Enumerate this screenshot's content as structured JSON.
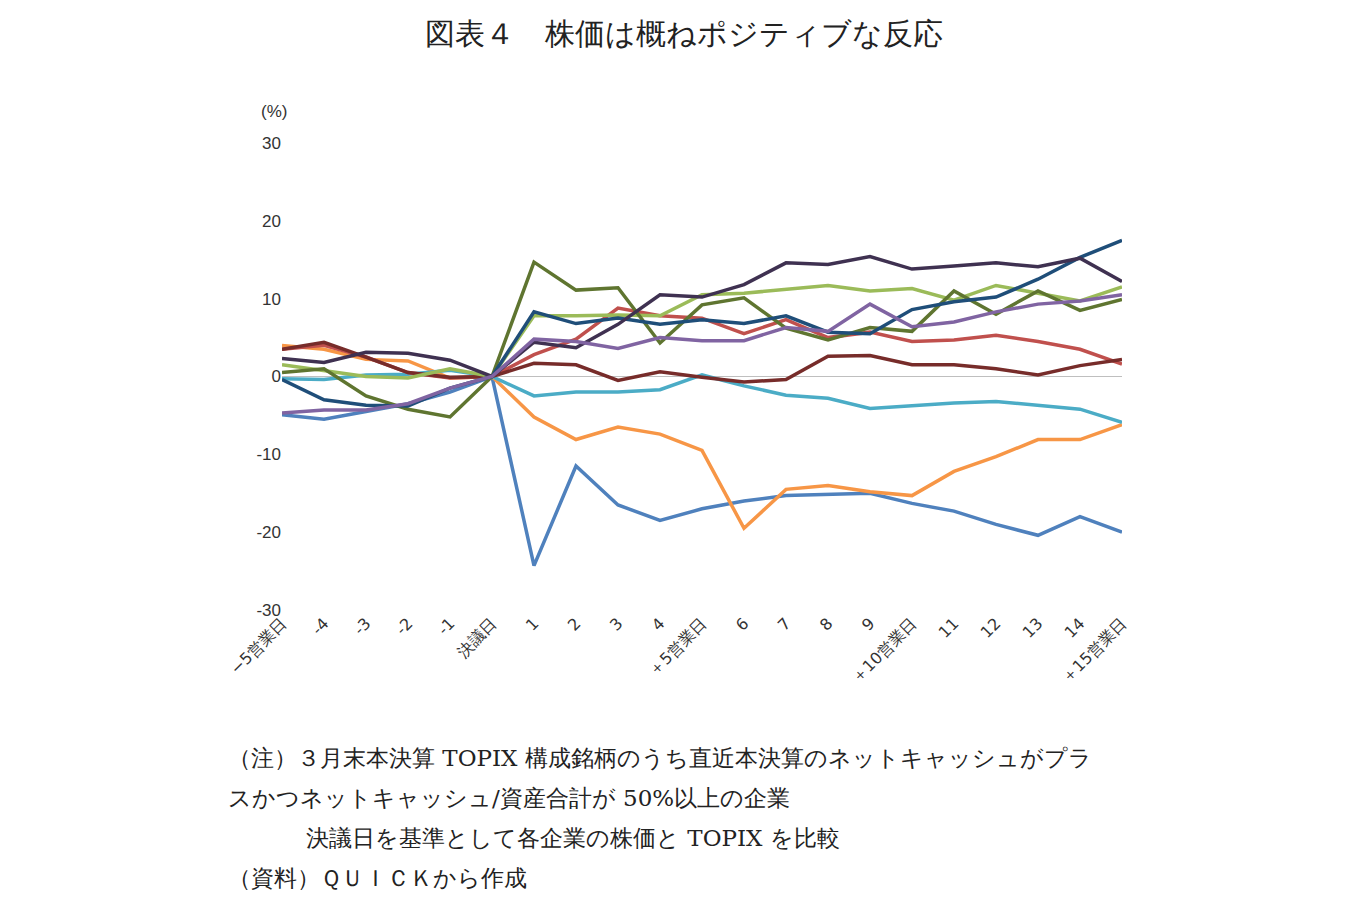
{
  "chart_data": {
    "type": "line",
    "title": "図表４　株価は概ねポジティブな反応",
    "ylabel": "(%)",
    "categories": [
      "−5営業日",
      "-4",
      "-3",
      "-2",
      "-1",
      "決議日",
      "1",
      "2",
      "3",
      "4",
      "＋5営業日",
      "6",
      "7",
      "8",
      "9",
      "＋10営業日",
      "11",
      "12",
      "13",
      "14",
      "＋15営業日"
    ],
    "ylim": [
      -30,
      30
    ],
    "yticks": [
      -30,
      -20,
      -10,
      0,
      10,
      20,
      30
    ],
    "grid": false,
    "series": [
      {
        "color": "#4f81bd",
        "values": [
          -4.9,
          -5.5,
          -4.5,
          -3.5,
          -2,
          0,
          -24.3,
          -11.5,
          -16.5,
          -18.5,
          -17,
          -16,
          -15.3,
          -15.1,
          -15,
          -16.3,
          -17.3,
          -19,
          -20.4,
          -18,
          -20
        ]
      },
      {
        "color": "#f79646",
        "values": [
          4,
          3.5,
          2.2,
          2,
          -0.2,
          0,
          -5.2,
          -8.1,
          -6.5,
          -7.4,
          -9.5,
          -19.5,
          -14.5,
          -14,
          -14.8,
          -15.3,
          -12.2,
          -10.3,
          -8.1,
          -8.1,
          -6.2
        ]
      },
      {
        "color": "#4bacc6",
        "values": [
          -0.3,
          -0.4,
          0.2,
          0.3,
          0.8,
          0,
          -2.5,
          -2,
          -2,
          -1.7,
          0.2,
          -1.2,
          -2.4,
          -2.8,
          -4.1,
          -3.7,
          -3.4,
          -3.2,
          -3.7,
          -4.2,
          -5.9
        ]
      },
      {
        "color": "#c0504d",
        "values": [
          3.5,
          4,
          2.5,
          0.5,
          -0.2,
          0,
          2.8,
          4.8,
          8.8,
          7.8,
          7.5,
          5.5,
          7.3,
          5,
          5.7,
          4.5,
          4.7,
          5.3,
          4.5,
          3.5,
          1.6
        ]
      },
      {
        "color": "#772c2a",
        "values": [
          3.5,
          4.4,
          2.5,
          0.5,
          -0.1,
          0,
          1.7,
          1.5,
          -0.5,
          0.6,
          -0.1,
          -0.7,
          -0.4,
          2.6,
          2.7,
          1.5,
          1.5,
          1,
          0.2,
          1.4,
          2.2
        ]
      },
      {
        "color": "#9bbb59",
        "values": [
          1.5,
          0.7,
          0,
          -0.2,
          1,
          0,
          7.8,
          7.8,
          7.9,
          7.8,
          10.5,
          10.7,
          11.2,
          11.7,
          11,
          11.3,
          9.8,
          11.7,
          10.7,
          9.7,
          11.5
        ]
      },
      {
        "color": "#5f7530",
        "values": [
          0.5,
          1,
          -2.5,
          -4.2,
          -5.2,
          0,
          14.7,
          11.1,
          11.4,
          4.3,
          9.2,
          10.1,
          6.2,
          4.7,
          6.3,
          5.8,
          11,
          8,
          11,
          8.5,
          9.9
        ]
      },
      {
        "color": "#1f4e79",
        "values": [
          -0.4,
          -3,
          -3.7,
          -3.8,
          -1.5,
          0,
          8.3,
          6.8,
          7.5,
          6.7,
          7.3,
          6.8,
          7.8,
          5.7,
          5.5,
          8.6,
          9.6,
          10.2,
          12.5,
          15.3,
          17.5
        ]
      },
      {
        "color": "#3f3151",
        "values": [
          2.3,
          1.8,
          3.1,
          3,
          2.1,
          0,
          4.4,
          3.7,
          6.7,
          10.5,
          10.2,
          11.8,
          14.6,
          14.4,
          15.4,
          13.8,
          14.2,
          14.6,
          14.1,
          15.2,
          12.2
        ]
      },
      {
        "color": "#8064a2",
        "values": [
          -4.7,
          -4.3,
          -4.3,
          -3.5,
          -1.5,
          0,
          4.8,
          4.5,
          3.6,
          5,
          4.6,
          4.6,
          6.3,
          5.8,
          9.3,
          6.4,
          7,
          8.3,
          9.3,
          9.7,
          10.5
        ]
      }
    ],
    "notes": [
      "（注）３月末本決算 TOPIX 構成銘柄のうち直近本決算のネットキャッシュがプラ",
      "スかつネットキャッシュ/資産合計が 50%以上の企業",
      "決議日を基準として各企業の株価と TOPIX を比較",
      "（資料）ＱＵＩＣＫから作成"
    ]
  }
}
